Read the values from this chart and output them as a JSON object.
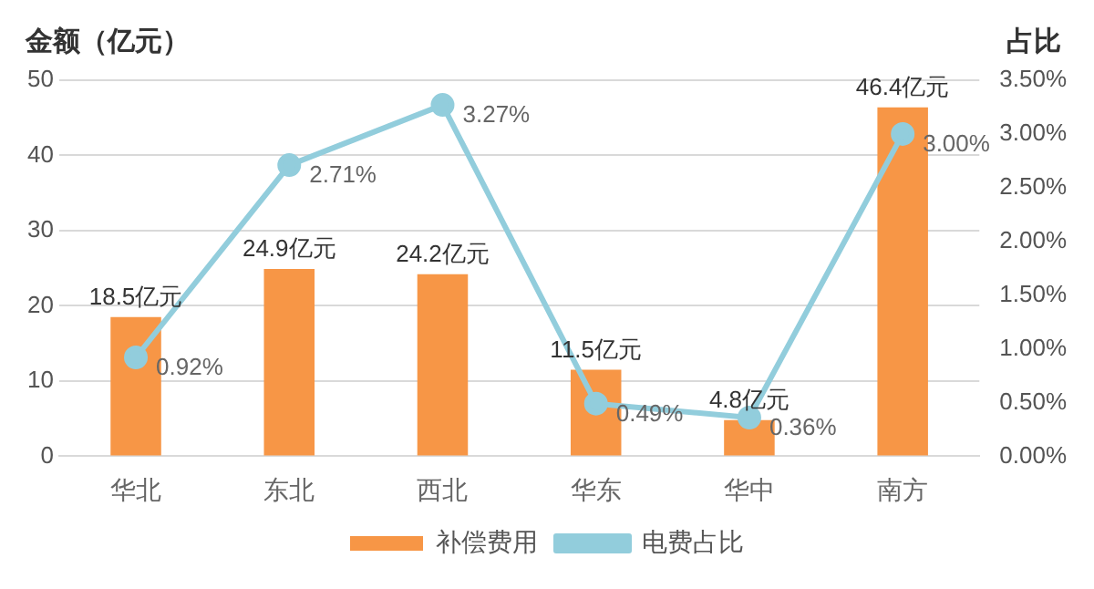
{
  "chart_data": {
    "type": "bar",
    "ylabel": "金额（亿元）",
    "y2label": "占比",
    "categories": [
      "华北",
      "东北",
      "西北",
      "华东",
      "华中",
      "南方"
    ],
    "series": [
      {
        "name": "补偿费用",
        "color": "#f79646",
        "values": [
          18.5,
          24.9,
          24.2,
          11.5,
          4.8,
          46.4
        ],
        "value_labels": [
          "18.5亿元",
          "24.9亿元",
          "24.2亿元",
          "11.5亿元",
          "4.8亿元",
          "46.4亿元"
        ]
      },
      {
        "name": "电费占比",
        "type": "line",
        "axis": "y2",
        "color": "#92cddc",
        "marker": "circle",
        "values": [
          0.92,
          2.71,
          3.27,
          0.49,
          0.36,
          3.0
        ],
        "value_labels": [
          "0.92%",
          "2.71%",
          "3.27%",
          "0.49%",
          "0.36%",
          "3.00%"
        ]
      }
    ],
    "ylim": [
      0,
      50
    ],
    "yticks": [
      0,
      10,
      20,
      30,
      40,
      50
    ],
    "y2lim": [
      0,
      3.5
    ],
    "y2ticks": [
      {
        "value": 0,
        "label": "0.00%"
      },
      {
        "value": 0.5,
        "label": "0.50%"
      },
      {
        "value": 1,
        "label": "1.00%"
      },
      {
        "value": 1.5,
        "label": "1.50%"
      },
      {
        "value": 2,
        "label": "2.00%"
      },
      {
        "value": 2.5,
        "label": "2.50%"
      },
      {
        "value": 3,
        "label": "3.00%"
      },
      {
        "value": 3.5,
        "label": "3.50%"
      }
    ],
    "grid": "y",
    "legend": "bottom"
  }
}
